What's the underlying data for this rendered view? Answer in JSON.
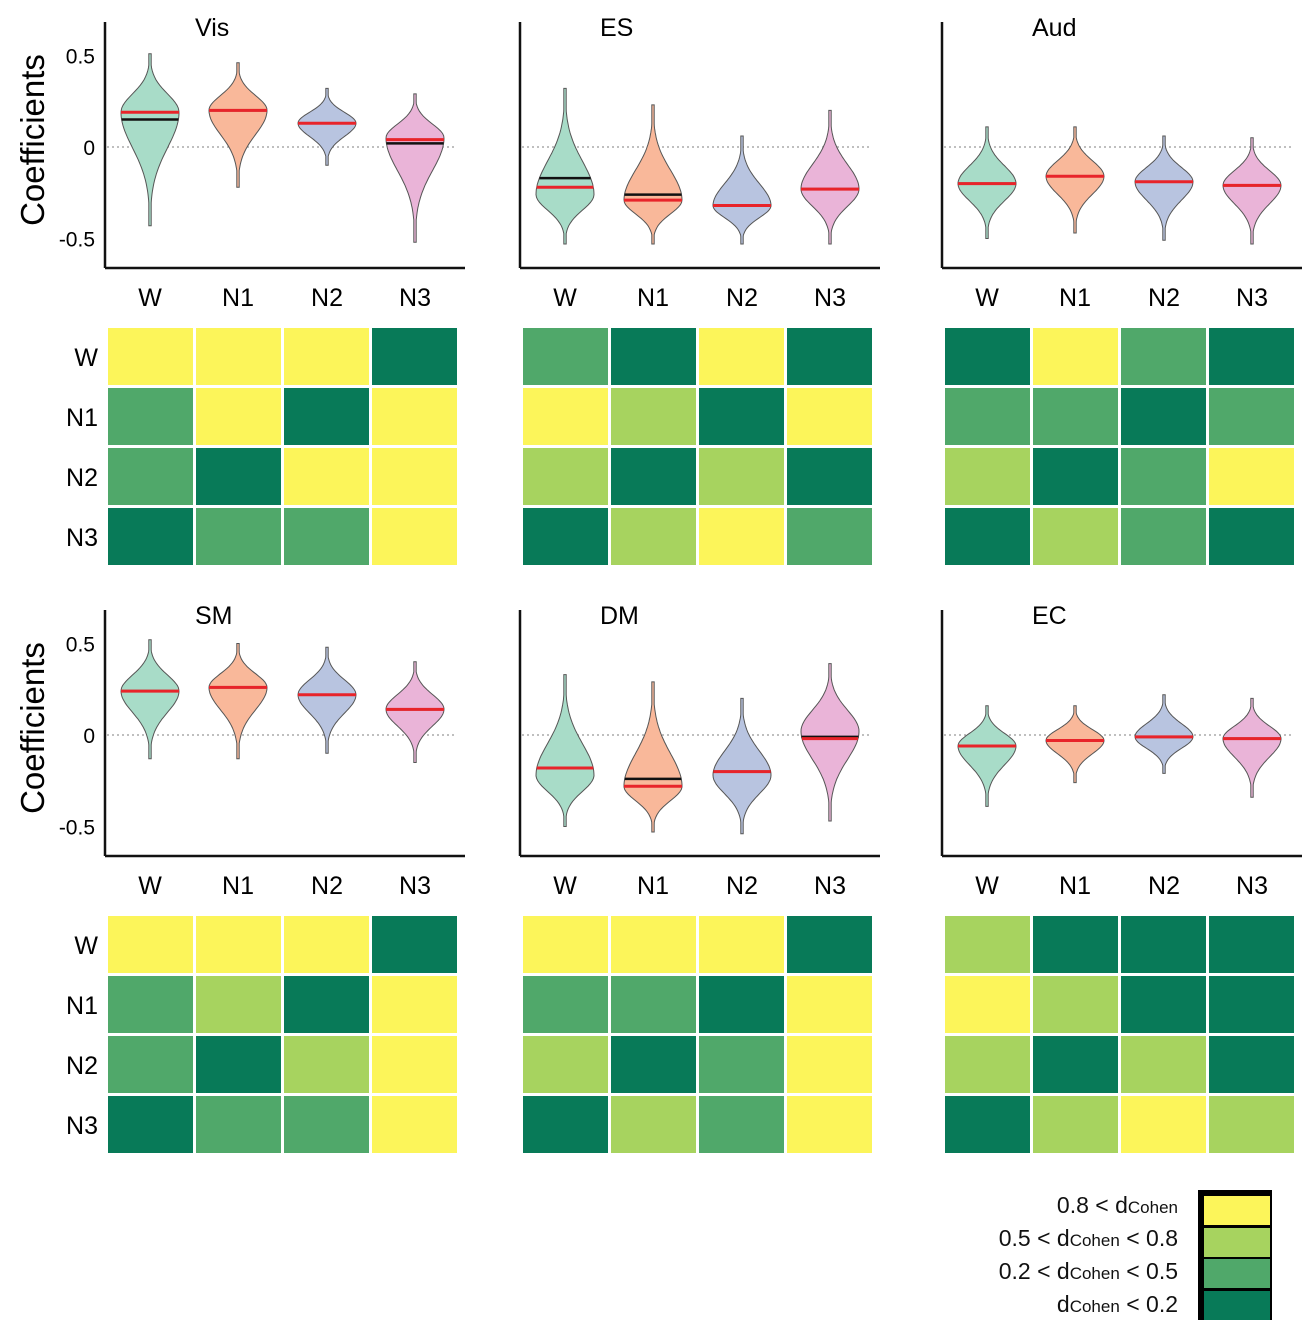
{
  "colors": {
    "W": "#a8dcc8",
    "N1": "#f9b89a",
    "N2": "#b8c4e0",
    "N3": "#eab4d8",
    "mean_line": "#e8242a",
    "median_line": "#111111",
    "effect_large": "#fcf55a",
    "effect_medium": "#a7d35f",
    "effect_small": "#50a86a",
    "effect_negligible": "#087a58"
  },
  "stages": [
    "W",
    "N1",
    "N2",
    "N3"
  ],
  "ylabel": "Coefficients",
  "y_ticks": [
    "0.5",
    "0",
    "-0.5"
  ],
  "legend": {
    "items": [
      {
        "pre": "0.8 < d",
        "sub": "Cohen",
        "post": "",
        "level": 3
      },
      {
        "pre": "0.5 < d",
        "sub": "Cohen",
        "post": " < 0.8",
        "level": 2
      },
      {
        "pre": "0.2 < d",
        "sub": "Cohen",
        "post": " < 0.5",
        "level": 1
      },
      {
        "pre": "d",
        "sub": "Cohen",
        "post": " < 0.2",
        "level": 0
      }
    ]
  },
  "chart_data": [
    {
      "type": "violin",
      "title": "Vis",
      "ylim": [
        -0.6,
        0.6
      ],
      "series": [
        {
          "name": "W",
          "mean": 0.19,
          "median": 0.15,
          "min": -0.43,
          "max": 0.51,
          "peak": 0.19
        },
        {
          "name": "N1",
          "mean": 0.2,
          "median": 0.2,
          "min": -0.22,
          "max": 0.46,
          "peak": 0.2
        },
        {
          "name": "N2",
          "mean": 0.13,
          "median": 0.13,
          "min": -0.1,
          "max": 0.32,
          "peak": 0.13
        },
        {
          "name": "N3",
          "mean": 0.04,
          "median": 0.02,
          "min": -0.52,
          "max": 0.29,
          "peak": 0.05
        }
      ],
      "effect_matrix": [
        [
          3,
          3,
          3,
          0
        ],
        [
          1,
          3,
          0,
          3
        ],
        [
          1,
          0,
          3,
          3
        ],
        [
          0,
          1,
          1,
          3
        ]
      ]
    },
    {
      "type": "violin",
      "title": "ES",
      "ylim": [
        -0.6,
        0.6
      ],
      "series": [
        {
          "name": "W",
          "mean": -0.22,
          "median": -0.17,
          "min": -0.53,
          "max": 0.32,
          "peak": -0.26
        },
        {
          "name": "N1",
          "mean": -0.29,
          "median": -0.26,
          "min": -0.53,
          "max": 0.23,
          "peak": -0.29
        },
        {
          "name": "N2",
          "mean": -0.32,
          "median": -0.32,
          "min": -0.53,
          "max": 0.06,
          "peak": -0.32
        },
        {
          "name": "N3",
          "mean": -0.23,
          "median": -0.23,
          "min": -0.53,
          "max": 0.2,
          "peak": -0.23
        }
      ],
      "effect_matrix": [
        [
          1,
          0,
          3,
          0
        ],
        [
          3,
          2,
          0,
          3
        ],
        [
          2,
          0,
          2,
          0
        ],
        [
          0,
          2,
          3,
          1
        ]
      ]
    },
    {
      "type": "violin",
      "title": "Aud",
      "ylim": [
        -0.6,
        0.6
      ],
      "series": [
        {
          "name": "W",
          "mean": -0.2,
          "median": -0.2,
          "min": -0.5,
          "max": 0.11,
          "peak": -0.2
        },
        {
          "name": "N1",
          "mean": -0.16,
          "median": -0.16,
          "min": -0.47,
          "max": 0.11,
          "peak": -0.16
        },
        {
          "name": "N2",
          "mean": -0.19,
          "median": -0.19,
          "min": -0.51,
          "max": 0.06,
          "peak": -0.19
        },
        {
          "name": "N3",
          "mean": -0.21,
          "median": -0.21,
          "min": -0.53,
          "max": 0.05,
          "peak": -0.21
        }
      ],
      "effect_matrix": [
        [
          0,
          3,
          1,
          0
        ],
        [
          1,
          1,
          0,
          1
        ],
        [
          2,
          0,
          1,
          3
        ],
        [
          0,
          2,
          1,
          0
        ]
      ]
    },
    {
      "type": "violin",
      "title": "SM",
      "ylim": [
        -0.6,
        0.6
      ],
      "series": [
        {
          "name": "W",
          "mean": 0.24,
          "median": 0.24,
          "min": -0.13,
          "max": 0.52,
          "peak": 0.24
        },
        {
          "name": "N1",
          "mean": 0.26,
          "median": 0.26,
          "min": -0.13,
          "max": 0.5,
          "peak": 0.26
        },
        {
          "name": "N2",
          "mean": 0.22,
          "median": 0.22,
          "min": -0.1,
          "max": 0.48,
          "peak": 0.22
        },
        {
          "name": "N3",
          "mean": 0.14,
          "median": 0.14,
          "min": -0.15,
          "max": 0.4,
          "peak": 0.14
        }
      ],
      "effect_matrix": [
        [
          3,
          3,
          3,
          0
        ],
        [
          1,
          2,
          0,
          3
        ],
        [
          1,
          0,
          2,
          3
        ],
        [
          0,
          1,
          1,
          3
        ]
      ]
    },
    {
      "type": "violin",
      "title": "DM",
      "ylim": [
        -0.6,
        0.6
      ],
      "series": [
        {
          "name": "W",
          "mean": -0.18,
          "median": -0.18,
          "min": -0.5,
          "max": 0.33,
          "peak": -0.22
        },
        {
          "name": "N1",
          "mean": -0.28,
          "median": -0.24,
          "min": -0.53,
          "max": 0.29,
          "peak": -0.28
        },
        {
          "name": "N2",
          "mean": -0.2,
          "median": -0.2,
          "min": -0.54,
          "max": 0.2,
          "peak": -0.22
        },
        {
          "name": "N3",
          "mean": -0.02,
          "median": -0.01,
          "min": -0.47,
          "max": 0.39,
          "peak": 0.02
        }
      ],
      "effect_matrix": [
        [
          3,
          3,
          3,
          0
        ],
        [
          1,
          1,
          0,
          3
        ],
        [
          2,
          0,
          1,
          3
        ],
        [
          0,
          2,
          1,
          3
        ]
      ]
    },
    {
      "type": "violin",
      "title": "EC",
      "ylim": [
        -0.6,
        0.6
      ],
      "series": [
        {
          "name": "W",
          "mean": -0.06,
          "median": -0.06,
          "min": -0.39,
          "max": 0.16,
          "peak": -0.06
        },
        {
          "name": "N1",
          "mean": -0.03,
          "median": -0.03,
          "min": -0.26,
          "max": 0.16,
          "peak": -0.03
        },
        {
          "name": "N2",
          "mean": -0.01,
          "median": -0.01,
          "min": -0.21,
          "max": 0.22,
          "peak": -0.01
        },
        {
          "name": "N3",
          "mean": -0.02,
          "median": -0.02,
          "min": -0.34,
          "max": 0.2,
          "peak": -0.02
        }
      ],
      "effect_matrix": [
        [
          2,
          0,
          0,
          0
        ],
        [
          3,
          2,
          0,
          0
        ],
        [
          2,
          0,
          2,
          0
        ],
        [
          0,
          2,
          3,
          2
        ]
      ]
    }
  ]
}
